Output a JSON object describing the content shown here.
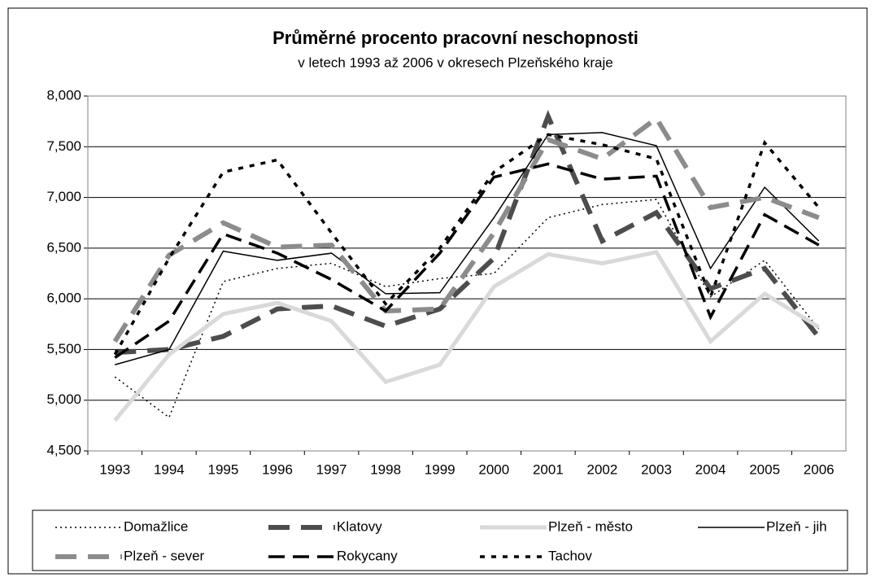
{
  "chart_data": {
    "type": "line",
    "title": "Průměrné procento pracovní neschopnosti",
    "subtitle": "v letech 1993 až 2006 v okresech Plzeňského kraje",
    "categories": [
      "1993",
      "1994",
      "1995",
      "1996",
      "1997",
      "1998",
      "1999",
      "2000",
      "2001",
      "2002",
      "2003",
      "2004",
      "2005",
      "2006"
    ],
    "ylim": [
      4500,
      8000
    ],
    "yticks": [
      {
        "value": 4500,
        "label": "4,500"
      },
      {
        "value": 5000,
        "label": "5,000"
      },
      {
        "value": 5500,
        "label": "5,500"
      },
      {
        "value": 6000,
        "label": "6,000"
      },
      {
        "value": 6500,
        "label": "6,500"
      },
      {
        "value": 7000,
        "label": "7,000"
      },
      {
        "value": 7500,
        "label": "7,500"
      },
      {
        "value": 8000,
        "label": "8,000"
      }
    ],
    "grid": true,
    "series": [
      {
        "name": "Domažlice",
        "color": "#000000",
        "values": [
          5230,
          4830,
          6170,
          6300,
          6350,
          6120,
          6200,
          6250,
          6800,
          6930,
          6980,
          6020,
          6380,
          5700
        ]
      },
      {
        "name": "Klatovy",
        "color": "#4d4d4d",
        "values": [
          5470,
          5500,
          5630,
          5900,
          5930,
          5730,
          5900,
          6400,
          7800,
          6570,
          6850,
          6100,
          6300,
          5620
        ]
      },
      {
        "name": "Plzeň - město",
        "color": "#d9d9d9",
        "values": [
          4800,
          5450,
          5850,
          5960,
          5780,
          5180,
          5350,
          6120,
          6440,
          6350,
          6460,
          5580,
          6050,
          5720
        ]
      },
      {
        "name": "Plzeň - jih",
        "color": "#000000",
        "values": [
          5350,
          5500,
          6470,
          6380,
          6450,
          6050,
          6060,
          6800,
          7620,
          7640,
          7510,
          6300,
          7100,
          6570
        ]
      },
      {
        "name": "Plzeň - sever",
        "color": "#8c8c8c",
        "values": [
          5580,
          6430,
          6750,
          6510,
          6530,
          5880,
          5900,
          6650,
          7570,
          7380,
          7780,
          6900,
          7000,
          6800
        ]
      },
      {
        "name": "Rokycany",
        "color": "#000000",
        "values": [
          5420,
          5780,
          6640,
          6450,
          6190,
          5880,
          6450,
          7200,
          7330,
          7180,
          7210,
          5820,
          6830,
          6530
        ]
      },
      {
        "name": "Tachov",
        "color": "#000000",
        "values": [
          5450,
          6400,
          7250,
          7370,
          6650,
          5950,
          6500,
          7250,
          7620,
          7520,
          7380,
          6020,
          7540,
          6900
        ]
      }
    ]
  }
}
